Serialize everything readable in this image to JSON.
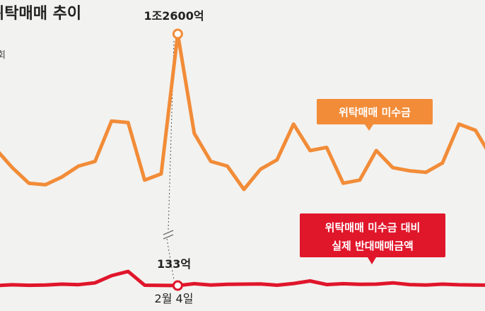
{
  "chart_data": {
    "type": "line",
    "title": "위탁매매 추이",
    "unit": "회",
    "x_tick_label": "2월 4일",
    "ylim": [
      0,
      14000
    ],
    "colors": {
      "orange": "#f28c38",
      "red": "#e0162b",
      "text": "#222222",
      "background": "#f2f2f0"
    },
    "series": [
      {
        "name": "위탁매매 미수금",
        "color": "#f28c38",
        "values": [
          5200,
          4000,
          3000,
          2900,
          3400,
          4100,
          4400,
          7000,
          6900,
          3200,
          3600,
          12600,
          6200,
          4400,
          4100,
          2600,
          3900,
          4500,
          6800,
          5100,
          5300,
          3000,
          3200,
          5100,
          4000,
          3800,
          3700,
          4300,
          6800,
          6400,
          4600
        ],
        "peak_index": 11,
        "peak_label": "1조2600억"
      },
      {
        "name": "위탁매매 미수금 대비 실제 반대매매금액",
        "color": "#e0162b",
        "values": [
          133,
          170,
          145,
          160,
          200,
          175,
          260,
          600,
          800,
          150,
          140,
          133,
          220,
          160,
          190,
          200,
          210,
          150,
          230,
          350,
          180,
          220,
          190,
          200,
          260,
          180,
          160,
          200,
          170,
          160,
          150
        ],
        "marker_index": 11,
        "marker_label": "133억"
      }
    ],
    "legend": [
      {
        "text": "위탁매매 미수금",
        "color": "#f28c38"
      },
      {
        "lines": [
          "위탁매매 미수금 대비",
          "실제 반대매매금액"
        ],
        "color": "#e0162b"
      }
    ]
  }
}
